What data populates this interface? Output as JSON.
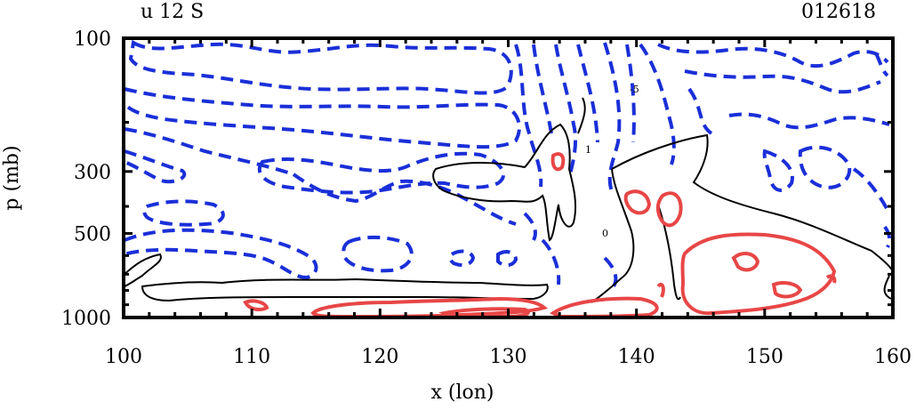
{
  "header": {
    "left": "u 12 S",
    "right": "012618"
  },
  "chart_data": {
    "type": "contour",
    "xlabel": "x (lon)",
    "ylabel": "p (mb)",
    "xlim": [
      100,
      160
    ],
    "ylim": [
      1000,
      100
    ],
    "x_ticks": [
      100,
      110,
      120,
      130,
      140,
      150,
      160
    ],
    "x_tick_labels": [
      "100",
      "110",
      "120",
      "130",
      "140",
      "150",
      "160"
    ],
    "y_ticks": [
      100,
      300,
      500,
      1000
    ],
    "y_tick_labels": [
      "100",
      "300",
      "500",
      "1000"
    ],
    "y_scale": "log",
    "grid": false,
    "contour_sets": [
      {
        "name": "negative",
        "color": "#1a2fd8",
        "style": "dashed"
      },
      {
        "name": "zero",
        "color": "#000000",
        "style": "solid"
      },
      {
        "name": "positive",
        "color": "#e84646",
        "style": "solid"
      }
    ],
    "annotations": [
      "1",
      "0",
      "-5"
    ]
  },
  "colors": {
    "negative": "#1a2fd8",
    "zero": "#000000",
    "positive": "#e84646"
  }
}
